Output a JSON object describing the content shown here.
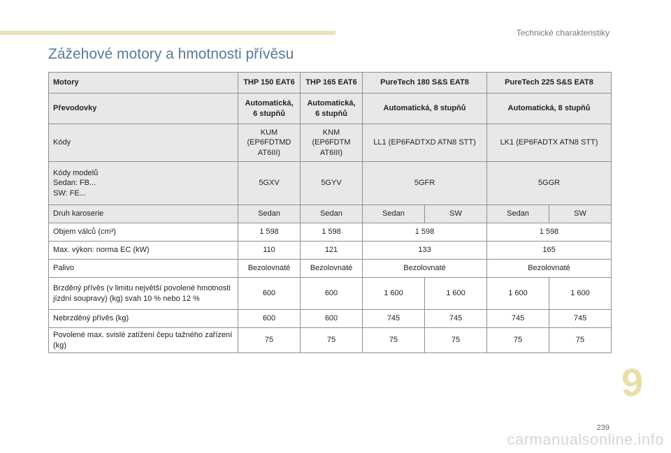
{
  "header": {
    "section": "Technické charakteristiky"
  },
  "title": "Zážehové motory a hmotnosti přívěsu",
  "table": {
    "engines": [
      "Motory",
      "THP 150 EAT6",
      "THP 165 EAT6",
      "PureTech 180 S&S EAT8",
      "PureTech 225 S&S EAT8"
    ],
    "gearboxes": [
      "Převodovky",
      "Automatická, 6 stupňů",
      "Automatická, 6 stupňů",
      "Automatická, 8 stupňů",
      "Automatická, 8 stupňů"
    ],
    "codes": [
      "Kódy",
      "KUM (EP6FDTMD AT6III)",
      "KNM (EP6FDTM AT6III)",
      "LL1 (EP6FADTXD ATN8 STT)",
      "LK1 (EP6FADTX ATN8 STT)"
    ],
    "model_codes": {
      "label_1": "Kódy modelů",
      "label_2": "Sedan: FB...",
      "label_3": "SW: FE...",
      "values": [
        "5GXV",
        "5GYV",
        "5GFR",
        "5GGR"
      ]
    },
    "body_type": [
      "Druh karoserie",
      "Sedan",
      "Sedan",
      "Sedan",
      "SW",
      "Sedan",
      "SW"
    ],
    "displacement": [
      "Objem válců (cm³)",
      "1 598",
      "1 598",
      "1 598",
      "1 598"
    ],
    "power": [
      "Max. výkon: norma EC (kW)",
      "110",
      "121",
      "133",
      "165"
    ],
    "fuel": [
      "Palivo",
      "Bezolovnaté",
      "Bezolovnaté",
      "Bezolovnaté",
      "Bezolovnaté"
    ],
    "braked_trailer": [
      "Brzděný přívěs (v limitu největší povolené hmotnosti jízdní soupravy) (kg) svah 10 % nebo 12 %",
      "600",
      "600",
      "1 600",
      "1 600",
      "1 600",
      "1 600"
    ],
    "unbraked_trailer": [
      "Nebrzděný přívěs (kg)",
      "600",
      "600",
      "745",
      "745",
      "745",
      "745"
    ],
    "towbar_load": [
      "Povolené max. svislé zatížení čepu tažného zařízení (kg)",
      "75",
      "75",
      "75",
      "75",
      "75",
      "75"
    ]
  },
  "chapter_number": "9",
  "page_number": "239",
  "watermark": "carmanualsonline.info"
}
